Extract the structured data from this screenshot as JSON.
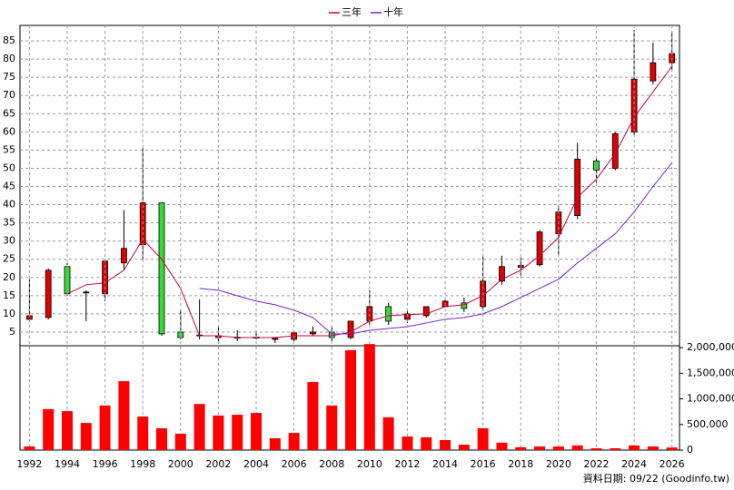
{
  "chart_data": [
    {
      "type": "candlestick",
      "x": [
        1992,
        1993,
        1994,
        1995,
        1996,
        1997,
        1998,
        1999,
        2000,
        2001,
        2002,
        2003,
        2004,
        2005,
        2006,
        2007,
        2008,
        2009,
        2010,
        2011,
        2012,
        2013,
        2014,
        2015,
        2016,
        2017,
        2018,
        2019,
        2020,
        2021,
        2022,
        2023,
        2024,
        2025,
        2026
      ],
      "open": [
        8.5,
        9,
        23,
        15.8,
        15.5,
        24,
        29,
        40.5,
        5,
        4.2,
        3.5,
        3.5,
        3.5,
        3,
        3,
        4.5,
        5,
        3.5,
        8,
        12,
        8.5,
        9.5,
        12,
        13,
        12,
        19,
        22.8,
        23.5,
        32,
        37,
        52,
        50,
        60,
        74,
        79
      ],
      "close": [
        9.5,
        22,
        15.5,
        16,
        24.5,
        28,
        40.5,
        4.5,
        3.5,
        4,
        4,
        3.6,
        3.6,
        3.3,
        4.8,
        5,
        3.5,
        8,
        12,
        8,
        10,
        12,
        13.5,
        11.5,
        19,
        23,
        23.3,
        32.5,
        38,
        52.5,
        49.5,
        59.5,
        74.5,
        79,
        81.5
      ],
      "high": [
        19.5,
        22.5,
        24,
        16.5,
        25,
        38.5,
        55.5,
        40.5,
        11,
        14,
        6.5,
        5.5,
        5.5,
        3.5,
        5,
        6.5,
        6.5,
        8,
        16.5,
        13,
        11,
        12,
        14.5,
        14.5,
        26,
        26,
        25.5,
        33,
        40,
        57,
        53,
        60,
        88,
        84.5,
        87.5
      ],
      "low": [
        8,
        8.5,
        15,
        8,
        13.5,
        22,
        25,
        4,
        3,
        3,
        2.5,
        2.5,
        3,
        2,
        2.5,
        4,
        2.5,
        3,
        7,
        7,
        7.5,
        9,
        12,
        10.5,
        11,
        18,
        20.5,
        23,
        26,
        36,
        46,
        49.5,
        59,
        73,
        77
      ],
      "up_color": "#e00000",
      "down_color": "#33dd33",
      "series": [
        {
          "name": "三年",
          "color": "#cc0044",
          "values": [
            null,
            null,
            15.5,
            18,
            18.5,
            22,
            30.5,
            25,
            17,
            4,
            4,
            3.5,
            3.5,
            3.5,
            4,
            4,
            4,
            5,
            8,
            9.5,
            9.8,
            10,
            12,
            12.5,
            15,
            19.5,
            22,
            26,
            31,
            42,
            47,
            54,
            64,
            71,
            78
          ]
        },
        {
          "name": "十年",
          "color": "#7a22cc",
          "values": [
            null,
            null,
            null,
            null,
            null,
            null,
            null,
            null,
            null,
            17,
            16.5,
            15,
            13.5,
            12.5,
            11,
            9,
            4.5,
            4.5,
            5.5,
            6,
            6.5,
            7.5,
            8.5,
            9,
            10,
            12,
            14.5,
            17,
            19.5,
            24,
            28,
            32,
            38,
            45,
            51.5
          ]
        }
      ],
      "xlim": [
        1991.5,
        2026.4
      ],
      "ylim": [
        1.5,
        89.25
      ],
      "yticks": [
        5,
        10,
        15,
        20,
        25,
        30,
        35,
        40,
        45,
        50,
        55,
        60,
        65,
        70,
        75,
        80,
        85
      ],
      "grid": true
    },
    {
      "type": "bar",
      "x": [
        1992,
        1993,
        1994,
        1995,
        1996,
        1997,
        1998,
        1999,
        2000,
        2001,
        2002,
        2003,
        2004,
        2005,
        2006,
        2007,
        2008,
        2009,
        2010,
        2011,
        2012,
        2013,
        2014,
        2015,
        2016,
        2017,
        2018,
        2019,
        2020,
        2021,
        2022,
        2023,
        2024,
        2025,
        2026
      ],
      "values": [
        70000,
        800000,
        760000,
        530000,
        870000,
        1345000,
        655000,
        425000,
        320000,
        900000,
        675000,
        690000,
        725000,
        230000,
        335000,
        1330000,
        870000,
        1950000,
        2070000,
        640000,
        265000,
        250000,
        195000,
        105000,
        425000,
        145000,
        55000,
        70000,
        70000,
        90000,
        35000,
        35000,
        90000,
        70000,
        50000
      ],
      "color": "#ff0000",
      "xlim": [
        1991.5,
        2026.4
      ],
      "ylim": [
        0,
        2020000
      ],
      "yticks": [
        0,
        {
          "value": 500000,
          "label": "500,000"
        },
        {
          "value": 1000000,
          "label": "1,000,000"
        },
        {
          "value": 1500000,
          "label": "1,500,000"
        },
        {
          "value": 2000000,
          "label": "2,000,000"
        }
      ],
      "xticks": [
        1992,
        1994,
        1996,
        1998,
        2000,
        2002,
        2004,
        2006,
        2008,
        2010,
        2012,
        2014,
        2016,
        2018,
        2020,
        2022,
        2024,
        2026
      ],
      "note": "資料日期: 09/22 (Goodinfo.tw)"
    }
  ]
}
